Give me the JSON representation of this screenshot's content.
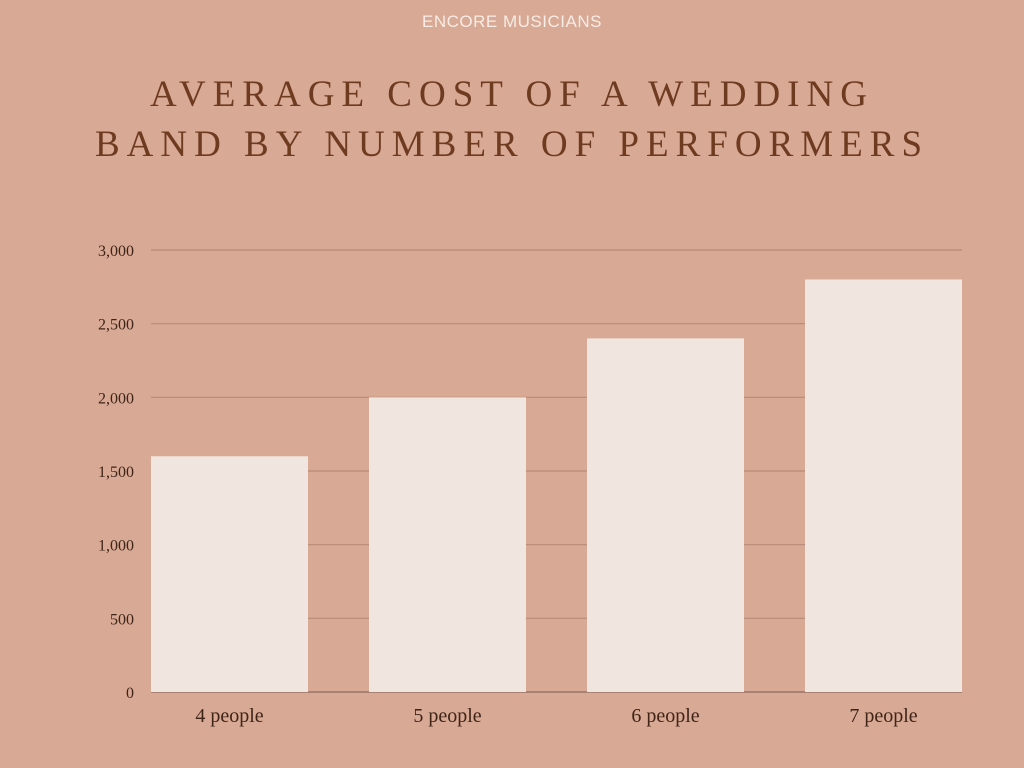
{
  "header": {
    "brand": "ENCORE MUSICIANS",
    "title_line1": "AVERAGE COST OF A WEDDING",
    "title_line2": "BAND BY NUMBER OF PERFORMERS"
  },
  "chart_data": {
    "type": "bar",
    "title": "AVERAGE COST OF A WEDDING BAND BY NUMBER OF PERFORMERS",
    "categories": [
      "4 people",
      "5 people",
      "6 people",
      "7 people"
    ],
    "values": [
      1600,
      2000,
      2400,
      2800
    ],
    "yticks": [
      0,
      500,
      1000,
      1500,
      2000,
      2500,
      3000
    ],
    "ytick_labels": [
      "0",
      "500",
      "1,000",
      "1,500",
      "2,000",
      "2,500",
      "3,000"
    ],
    "ylim": [
      0,
      3000
    ],
    "xlabel": "",
    "ylabel": "",
    "grid": true,
    "legend": "none",
    "colors": {
      "background": "#d8a994",
      "bar": "#f0e6df",
      "gridline": "#b98a78",
      "title": "#6e3a20",
      "text": "#3f2418"
    }
  }
}
